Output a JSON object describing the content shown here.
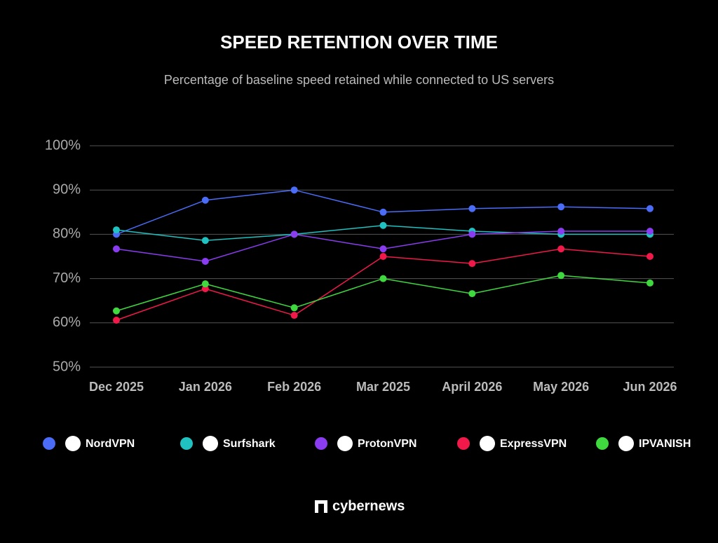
{
  "chart_data": {
    "type": "line",
    "title": "SPEED RETENTION OVER TIME",
    "subtitle": "Percentage of baseline speed retained while connected to US servers",
    "categories": [
      "Dec 2025",
      "Jan 2026",
      "Feb 2026",
      "Mar 2025",
      "April 2026",
      "May 2026",
      "Jun 2026"
    ],
    "series": [
      {
        "name": "NordVPN",
        "color": "#4a6cf7",
        "values": [
          80,
          87.7,
          90,
          85,
          85.8,
          86.2,
          85.8
        ]
      },
      {
        "name": "Surfshark",
        "color": "#1fc1c1",
        "values": [
          81,
          78.6,
          80,
          82,
          80.7,
          80,
          80
        ]
      },
      {
        "name": "ProtonVPN",
        "color": "#8a3cf0",
        "values": [
          76.7,
          73.9,
          80,
          76.7,
          80,
          80.7,
          80.7
        ]
      },
      {
        "name": "ExpressVPN",
        "color": "#f0194a",
        "values": [
          60.6,
          67.7,
          61.7,
          75,
          73.4,
          76.7,
          75
        ]
      },
      {
        "name": "IPVANISH",
        "color": "#3fd83f",
        "values": [
          62.7,
          68.8,
          63.4,
          70,
          66.6,
          70.7,
          69
        ]
      }
    ],
    "ylim": [
      50,
      100
    ],
    "yticks": [
      {
        "value": 50,
        "label": "50%"
      },
      {
        "value": 60,
        "label": "60%"
      },
      {
        "value": 70,
        "label": "70%"
      },
      {
        "value": 80,
        "label": "80%"
      },
      {
        "value": 90,
        "label": "90%"
      },
      {
        "value": 100,
        "label": "100%"
      }
    ],
    "grid": true,
    "legend": "bottom",
    "source": "cybernews"
  }
}
